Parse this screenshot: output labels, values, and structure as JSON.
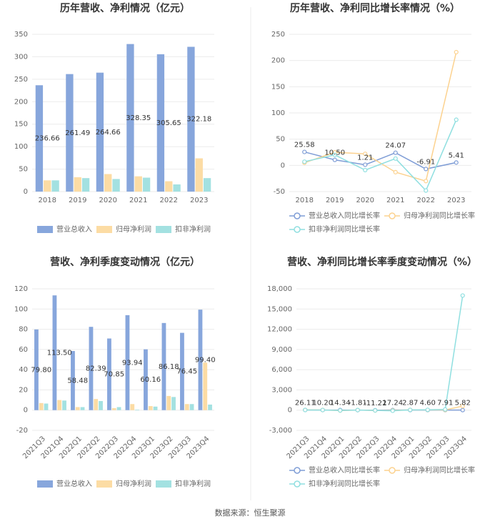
{
  "chart_data": [
    {
      "type": "bar",
      "title": "历年营收、净利情况（亿元）",
      "categories": [
        "2018",
        "2019",
        "2020",
        "2021",
        "2022",
        "2023"
      ],
      "series": [
        {
          "name": "营业总收入",
          "color": "#87a6dc",
          "values": [
            236.66,
            261.49,
            264.66,
            328.35,
            305.65,
            322.18
          ],
          "value_labels": [
            "236.66",
            "261.49",
            "264.66",
            "328.35",
            "305.65",
            "322.18"
          ]
        },
        {
          "name": "归母净利润",
          "color": "#fcdca4",
          "values": [
            25,
            32,
            39,
            34,
            23,
            74
          ]
        },
        {
          "name": "扣非净利润",
          "color": "#a3e1e1",
          "values": [
            25,
            30,
            28,
            31,
            16,
            30
          ]
        }
      ],
      "ylim": [
        0,
        350
      ],
      "yticks": [
        0,
        50,
        100,
        150,
        200,
        250,
        300,
        350
      ],
      "grid": true
    },
    {
      "type": "line",
      "title": "历年营收、净利同比增长率情况（%）",
      "categories": [
        "2018",
        "2019",
        "2020",
        "2021",
        "2022",
        "2023"
      ],
      "series": [
        {
          "name": "营业总收入同比增长率",
          "color": "#7f9dd6",
          "values": [
            25.58,
            10.5,
            1.21,
            24.07,
            -6.91,
            5.41
          ],
          "value_labels": [
            "25.58",
            "10.50",
            "1.21",
            "24.07",
            "-6.91",
            "5.41"
          ]
        },
        {
          "name": "归母净利润同比增长率",
          "color": "#fcd28f",
          "values": [
            5,
            25,
            22,
            -13,
            -30,
            216
          ]
        },
        {
          "name": "扣非净利润同比增长率",
          "color": "#8fdfe0",
          "values": [
            7,
            20,
            -9,
            13,
            -48,
            87
          ]
        }
      ],
      "ylim": [
        -50,
        250
      ],
      "yticks": [
        -50,
        0,
        50,
        100,
        150,
        200,
        250
      ],
      "grid": true
    },
    {
      "type": "bar",
      "title": "营收、净利季度变动情况（亿元）",
      "categories": [
        "2021Q3",
        "2021Q4",
        "2022Q1",
        "2022Q2",
        "2022Q3",
        "2022Q4",
        "2023Q1",
        "2023Q2",
        "2023Q3",
        "2023Q4"
      ],
      "series": [
        {
          "name": "营业总收入",
          "color": "#87a6dc",
          "values": [
            79.8,
            113.5,
            58.48,
            82.39,
            70.85,
            93.94,
            60.16,
            86.18,
            76.45,
            99.4
          ],
          "value_labels": [
            "79.80",
            "113.50",
            "58.48",
            "82.39",
            "70.85",
            "93.94",
            "60.16",
            "86.18",
            "76.45",
            "99.40"
          ]
        },
        {
          "name": "归母净利润",
          "color": "#fcdca4",
          "values": [
            7,
            10,
            3,
            11,
            2,
            6,
            4,
            14,
            6,
            47
          ]
        },
        {
          "name": "扣非净利润",
          "color": "#a3e1e1",
          "values": [
            6.5,
            9.5,
            3,
            9,
            3,
            0.5,
            3.5,
            13,
            6,
            5.5
          ]
        }
      ],
      "ylim": [
        -20,
        120
      ],
      "yticks": [
        -20,
        0,
        20,
        40,
        60,
        80,
        100,
        120
      ],
      "grid": true
    },
    {
      "type": "line",
      "title": "营收、净利同比增长率季度变动情况（%）",
      "categories": [
        "2021Q3",
        "2021Q4",
        "2022Q1",
        "2022Q2",
        "2022Q3",
        "2022Q4",
        "2023Q1",
        "2023Q2",
        "2023Q3",
        "2023Q4"
      ],
      "series": [
        {
          "name": "营业总收入同比增长率",
          "color": "#7f9dd6",
          "values": [
            26.11,
            10.2,
            14.34,
            -1.81,
            -11.22,
            17.24,
            2.87,
            4.6,
            7.91,
            5.82
          ],
          "value_labels": [
            "26.11",
            "10.20",
            "14.34",
            "-1.81",
            "-11.22",
            "17.24",
            "2.87",
            "4.60",
            "7.91",
            "5.82"
          ]
        },
        {
          "name": "归母净利润同比增长率",
          "color": "#fcd28f",
          "values": [
            30,
            20,
            -60,
            15,
            -50,
            -40,
            40,
            30,
            30,
            600
          ]
        },
        {
          "name": "扣非净利润同比增长率",
          "color": "#8fdfe0",
          "values": [
            20,
            15,
            -50,
            10,
            -40,
            -90,
            30,
            45,
            100,
            17000
          ]
        }
      ],
      "ylim": [
        -3000,
        18000
      ],
      "yticks": [
        {
          "value": -3000,
          "label": "-3,000"
        },
        0,
        {
          "value": 3000,
          "label": "3,000"
        },
        {
          "value": 6000,
          "label": "6,000"
        },
        {
          "value": 9000,
          "label": "9,000"
        },
        {
          "value": 12000,
          "label": "12,000"
        },
        {
          "value": 15000,
          "label": "15,000"
        },
        {
          "value": 18000,
          "label": "18,000"
        }
      ],
      "grid": true
    }
  ],
  "footer": "数据来源：恒生聚源"
}
